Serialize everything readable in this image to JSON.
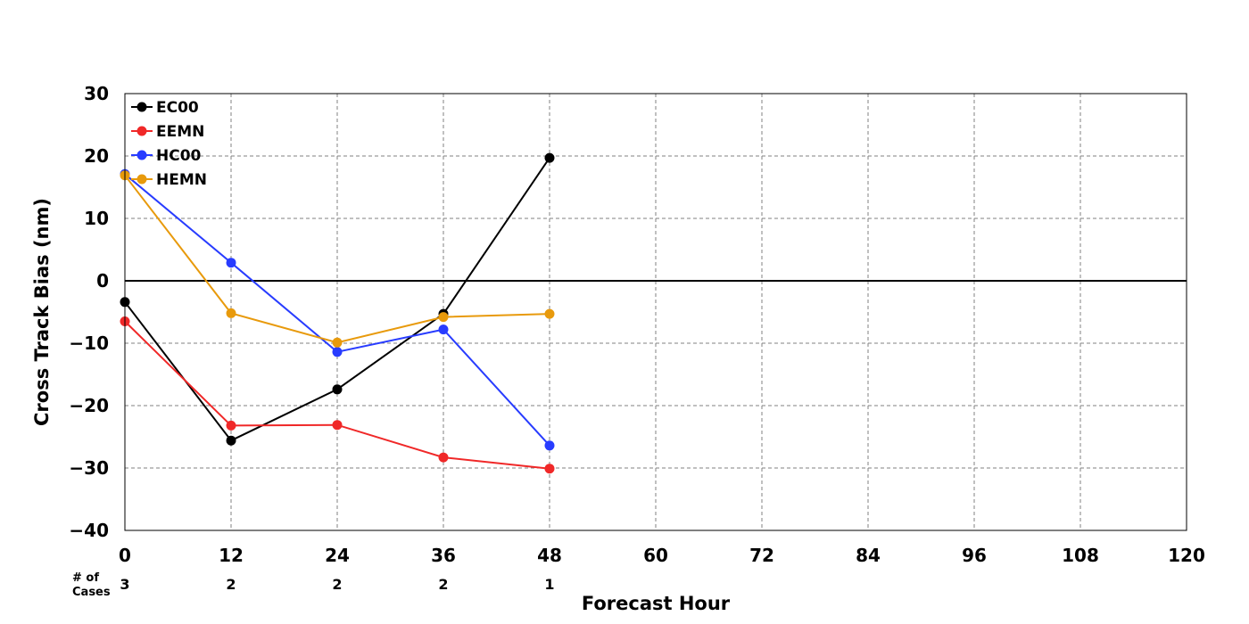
{
  "chart_data": {
    "type": "line",
    "xlabel": "Forecast Hour",
    "ylabel": "Cross Track Bias (nm)",
    "xlim": [
      0,
      120
    ],
    "ylim": [
      -40,
      30
    ],
    "xticks": [
      0,
      12,
      24,
      36,
      48,
      60,
      72,
      84,
      96,
      108,
      120
    ],
    "yticks": [
      -40,
      -30,
      -20,
      -10,
      0,
      10,
      20,
      30
    ],
    "grid": true,
    "grid_style": "dashed",
    "legend_position": "top-left",
    "zero_line": true,
    "cases": {
      "label_line1": "# of",
      "label_line2": "Cases",
      "x": [
        0,
        12,
        24,
        36,
        48
      ],
      "values": [
        "3",
        "2",
        "2",
        "2",
        "1"
      ]
    },
    "series": [
      {
        "name": "EC00",
        "color": "#000000",
        "x": [
          0,
          12,
          24,
          36,
          48
        ],
        "values": [
          -3.4,
          -25.6,
          -17.4,
          -5.3,
          19.7
        ]
      },
      {
        "name": "EEMN",
        "color": "#f02828",
        "x": [
          0,
          12,
          24,
          36,
          48
        ],
        "values": [
          -6.5,
          -23.2,
          -23.1,
          -28.3,
          -30.1
        ]
      },
      {
        "name": "HC00",
        "color": "#283cff",
        "x": [
          0,
          12,
          24,
          36,
          48
        ],
        "values": [
          17.1,
          2.9,
          -11.4,
          -7.8,
          -26.4
        ]
      },
      {
        "name": "HEMN",
        "color": "#e89a0c",
        "x": [
          0,
          12,
          24,
          36,
          48
        ],
        "values": [
          16.9,
          -5.2,
          -9.9,
          -5.8,
          -5.3
        ]
      }
    ]
  }
}
